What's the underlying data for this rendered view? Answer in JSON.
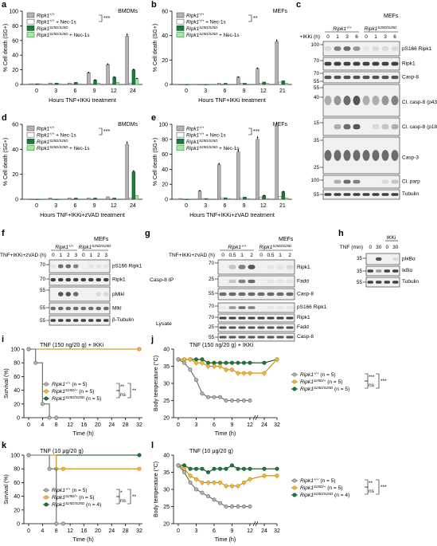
{
  "panel_letters": [
    "a",
    "b",
    "c",
    "d",
    "e",
    "f",
    "g",
    "h",
    "i",
    "j",
    "k",
    "l"
  ],
  "legend_cell": {
    "wt": "Ripk1+/+",
    "wt_nec": "Ripk1+/+ + Nec-1s",
    "mut": "Ripk1S25D/S25D",
    "mut_nec": "Ripk1S25D/S25D + Nec-1s"
  },
  "legend_mouse": {
    "wt": "Ripk1+/+ (n = 5)",
    "het": "Ripk1S25D/+ (n = 5)",
    "hom5": "Ripk1S25D/S25D (n = 5)",
    "hom4": "Ripk1S25D/S25D (n = 4)"
  },
  "sig": {
    "a": "***",
    "b": "**",
    "d": "***",
    "e": "***",
    "i": [
      "**",
      "**",
      "ns"
    ],
    "j": [
      "***",
      "***",
      "ns"
    ],
    "k": [
      "*",
      "**",
      "ns"
    ],
    "l": [
      "**",
      "***",
      "ns"
    ]
  },
  "blots": {
    "c": {
      "title": "MEFs",
      "treat": "TNF+IKKi (h)",
      "times": [
        "0",
        "1",
        "3",
        "6",
        "0",
        "1",
        "3",
        "6"
      ],
      "geno1": "Ripk1+/+",
      "geno2": "Ripk1S25D/S25D",
      "mw": [
        "100",
        "70",
        "70",
        "55",
        "55",
        "40",
        "15",
        "35",
        "25",
        "100",
        "55"
      ],
      "labels": [
        "pS166 Ripk1",
        "Ripk1",
        "Casp-8",
        "Cl. casp-8 (p43)",
        "Cl. casp-8 (p18)",
        "Casp-3",
        "Cl. parp",
        "Tubulin"
      ]
    },
    "f": {
      "title": "MEFs",
      "treat": "TNF+IKKi+zVAD (h)",
      "times": [
        "0",
        "1",
        "2",
        "3",
        "0",
        "1",
        "2",
        "3"
      ],
      "geno1": "Ripk1+/+",
      "geno2": "Ripk1S25D/S25D",
      "mw": [
        "70",
        "70",
        "55",
        "55",
        "55"
      ],
      "labels": [
        "pS166 Ripk1",
        "Ripk1",
        "pMlkl",
        "Mlkl",
        "β-Tubulin"
      ]
    },
    "g": {
      "title": "MEFs",
      "treat": "TNF+IKKi+zVAD (h)",
      "times": [
        "0",
        "0.5",
        "1",
        "2",
        "0",
        "0.5",
        "1",
        "2"
      ],
      "geno1": "Ripk1+/+",
      "geno2": "Ripk1S25D/S25D",
      "mw": [
        "70",
        "25",
        "55",
        "70",
        "70",
        "25",
        "55"
      ],
      "labels": [
        "Ripk1",
        "Fadd",
        "Casp-8",
        "pS166 Ripk1",
        "Ripk1",
        "Fadd",
        "Casp-8"
      ],
      "groups": [
        "Casp-8 IP",
        "Lysate"
      ]
    },
    "h": {
      "treat": "TNF (min)",
      "times": [
        "0",
        "30",
        "0",
        "30"
      ],
      "group": "IKKi",
      "mw": [
        "35",
        "35",
        "55"
      ],
      "labels": [
        "pIκBα",
        "IκBα",
        "Tubulin"
      ]
    }
  },
  "chart_data": [
    {
      "panel": "a",
      "type": "bar",
      "title": "BMDMs",
      "xlabel": "Hours TNF+IKKi treatment",
      "ylabel": "% Cell death (SG+)",
      "ylim": [
        0,
        100
      ],
      "categories": [
        "0",
        "3",
        "6",
        "9",
        "12",
        "24"
      ],
      "series": [
        {
          "name": "Ripk1+/+",
          "values": [
            1,
            2,
            2,
            16,
            27,
            66
          ]
        },
        {
          "name": "Ripk1+/+ + Nec-1s",
          "values": [
            1,
            1,
            1,
            1,
            1,
            2
          ]
        },
        {
          "name": "Ripk1S25D/S25D",
          "values": [
            1,
            2,
            3,
            6,
            10,
            20
          ]
        },
        {
          "name": "Ripk1S25D/S25D + Nec-1s",
          "values": [
            1,
            1,
            1,
            2,
            3,
            8
          ]
        }
      ]
    },
    {
      "panel": "b",
      "type": "bar",
      "title": "MEFs",
      "xlabel": "Hours TNF+IKKi treatment",
      "ylabel": "% Cell death (SG+)",
      "ylim": [
        0,
        60
      ],
      "categories": [
        "0",
        "3",
        "6",
        "9",
        "12",
        "21"
      ],
      "series": [
        {
          "name": "Ripk1+/+",
          "values": [
            0,
            0,
            1,
            6,
            13,
            35
          ]
        },
        {
          "name": "Ripk1+/+ + Nec-1s",
          "values": [
            0,
            0,
            0,
            1,
            1,
            2
          ]
        },
        {
          "name": "Ripk1S25D/S25D",
          "values": [
            0,
            0,
            1,
            1,
            2,
            3
          ]
        },
        {
          "name": "Ripk1S25D/S25D + Nec-1s",
          "values": [
            0,
            0,
            0,
            0,
            1,
            1
          ]
        }
      ]
    },
    {
      "panel": "d",
      "type": "bar",
      "title": "BMDMs",
      "xlabel": "Hours TNF+IKKi+zVAD treatment",
      "ylabel": "% Cell death (SG+)",
      "ylim": [
        0,
        60
      ],
      "categories": [
        "0",
        "3",
        "6",
        "9",
        "12",
        "24"
      ],
      "series": [
        {
          "name": "Ripk1+/+",
          "values": [
            0,
            1,
            1,
            1,
            2,
            44
          ]
        },
        {
          "name": "Ripk1+/+ + Nec-1s",
          "values": [
            0,
            0,
            0,
            0,
            0,
            1
          ]
        },
        {
          "name": "Ripk1S25D/S25D",
          "values": [
            0,
            0,
            1,
            1,
            1,
            22
          ]
        },
        {
          "name": "Ripk1S25D/S25D + Nec-1s",
          "values": [
            0,
            0,
            0,
            0,
            0,
            3
          ]
        }
      ]
    },
    {
      "panel": "e",
      "type": "bar",
      "title": "MEFs",
      "xlabel": "Hours TNF+IKKi+zVAD treatment",
      "ylabel": "% Cell death (SG+)",
      "ylim": [
        0,
        100
      ],
      "categories": [
        "0",
        "3",
        "6",
        "9",
        "12",
        "21"
      ],
      "series": [
        {
          "name": "Ripk1+/+",
          "values": [
            1,
            11,
            46,
            63,
            80,
            98
          ]
        },
        {
          "name": "Ripk1+/+ + Nec-1s",
          "values": [
            0,
            1,
            2,
            2,
            3,
            4
          ]
        },
        {
          "name": "Ripk1S25D/S25D",
          "values": [
            0,
            1,
            2,
            3,
            5,
            10
          ]
        },
        {
          "name": "Ripk1S25D/S25D + Nec-1s",
          "values": [
            0,
            0,
            1,
            1,
            1,
            2
          ]
        }
      ]
    },
    {
      "panel": "i",
      "type": "line",
      "title": "TNF (150 ng/20 g) + IKKi",
      "xlabel": "Time (h)",
      "ylabel": "Survival (%)",
      "ylim": [
        0,
        100
      ],
      "x": [
        0,
        4,
        8,
        12,
        16,
        20,
        24,
        28,
        32
      ],
      "series": [
        {
          "name": "Ripk1+/+ (n = 5)",
          "x": [
            0,
            2,
            4,
            6,
            8
          ],
          "values": [
            100,
            80,
            20,
            0,
            0
          ]
        },
        {
          "name": "Ripk1S25D/+ (n = 5)",
          "x": [
            0,
            32
          ],
          "values": [
            100,
            100
          ]
        },
        {
          "name": "Ripk1S25D/S25D (n = 5)",
          "x": [
            0,
            32
          ],
          "values": [
            100,
            100
          ]
        }
      ]
    },
    {
      "panel": "j",
      "type": "line",
      "title": "TNF (150 ng/20 g) + IKKi",
      "xlabel": "Time (h)",
      "ylabel": "Body temperature (°C)",
      "ylim": [
        20,
        40
      ],
      "x": [
        0,
        3,
        6,
        9,
        12,
        24,
        32
      ],
      "series": [
        {
          "name": "Ripk1+/+",
          "x": [
            0,
            1,
            2,
            3,
            4,
            5,
            6,
            7,
            8,
            9,
            10,
            11,
            12
          ],
          "values": [
            37,
            36,
            34,
            31,
            27,
            26,
            26,
            26,
            25,
            25,
            25,
            25,
            25
          ]
        },
        {
          "name": "Ripk1S25D/+",
          "x": [
            0,
            1,
            2,
            3,
            4,
            5,
            6,
            7,
            8,
            9,
            10,
            11,
            12,
            24,
            32
          ],
          "values": [
            37,
            37,
            37,
            36,
            36,
            35,
            35,
            35,
            34,
            34,
            33,
            33,
            33,
            33,
            37
          ]
        },
        {
          "name": "Ripk1S25D/S25D",
          "x": [
            0,
            1,
            2,
            3,
            4,
            5,
            6,
            7,
            8,
            9,
            10,
            11,
            12,
            24,
            32
          ],
          "values": [
            37,
            37,
            37,
            37,
            37,
            36,
            36,
            36,
            36,
            36,
            36,
            36,
            36,
            36,
            37
          ]
        }
      ]
    },
    {
      "panel": "k",
      "type": "line",
      "title": "TNF (10 μg/20 g)",
      "xlabel": "Time (h)",
      "ylabel": "Survival (%)",
      "ylim": [
        0,
        100
      ],
      "x": [
        0,
        4,
        8,
        12,
        16,
        20,
        24,
        28,
        32
      ],
      "series": [
        {
          "name": "Ripk1+/+ (n = 5)",
          "x": [
            0,
            6,
            8,
            10
          ],
          "values": [
            100,
            80,
            0,
            0
          ]
        },
        {
          "name": "Ripk1S25D/+ (n = 5)",
          "x": [
            0,
            8,
            10,
            32
          ],
          "values": [
            100,
            80,
            80,
            80
          ]
        },
        {
          "name": "Ripk1S25D/S25D (n = 4)",
          "x": [
            0,
            32
          ],
          "values": [
            100,
            100
          ]
        }
      ]
    },
    {
      "panel": "l",
      "type": "line",
      "title": "TNF (10 μg/20 g)",
      "xlabel": "Time (h)",
      "ylabel": "Body temperature (°C)",
      "ylim": [
        20,
        40
      ],
      "x": [
        0,
        3,
        6,
        9,
        12,
        24,
        32
      ],
      "series": [
        {
          "name": "Ripk1+/+",
          "x": [
            0,
            1,
            2,
            3,
            4,
            5,
            6,
            7,
            8,
            9,
            10,
            11,
            12
          ],
          "values": [
            37,
            35,
            32,
            30,
            29,
            28,
            27,
            26,
            25,
            25,
            25,
            25,
            25
          ]
        },
        {
          "name": "Ripk1S25D/+",
          "x": [
            0,
            1,
            2,
            3,
            4,
            5,
            6,
            7,
            8,
            9,
            10,
            11,
            12,
            24,
            32
          ],
          "values": [
            37,
            36,
            34,
            33,
            32,
            32,
            32,
            32,
            31,
            31,
            31,
            32,
            33,
            34,
            34
          ]
        },
        {
          "name": "Ripk1S25D/S25D",
          "x": [
            0,
            1,
            2,
            3,
            4,
            5,
            6,
            7,
            8,
            9,
            10,
            11,
            12,
            24,
            32
          ],
          "values": [
            37,
            37,
            36,
            36,
            36,
            35,
            36,
            36,
            36,
            37,
            36,
            36,
            36,
            36,
            36
          ]
        }
      ]
    }
  ]
}
